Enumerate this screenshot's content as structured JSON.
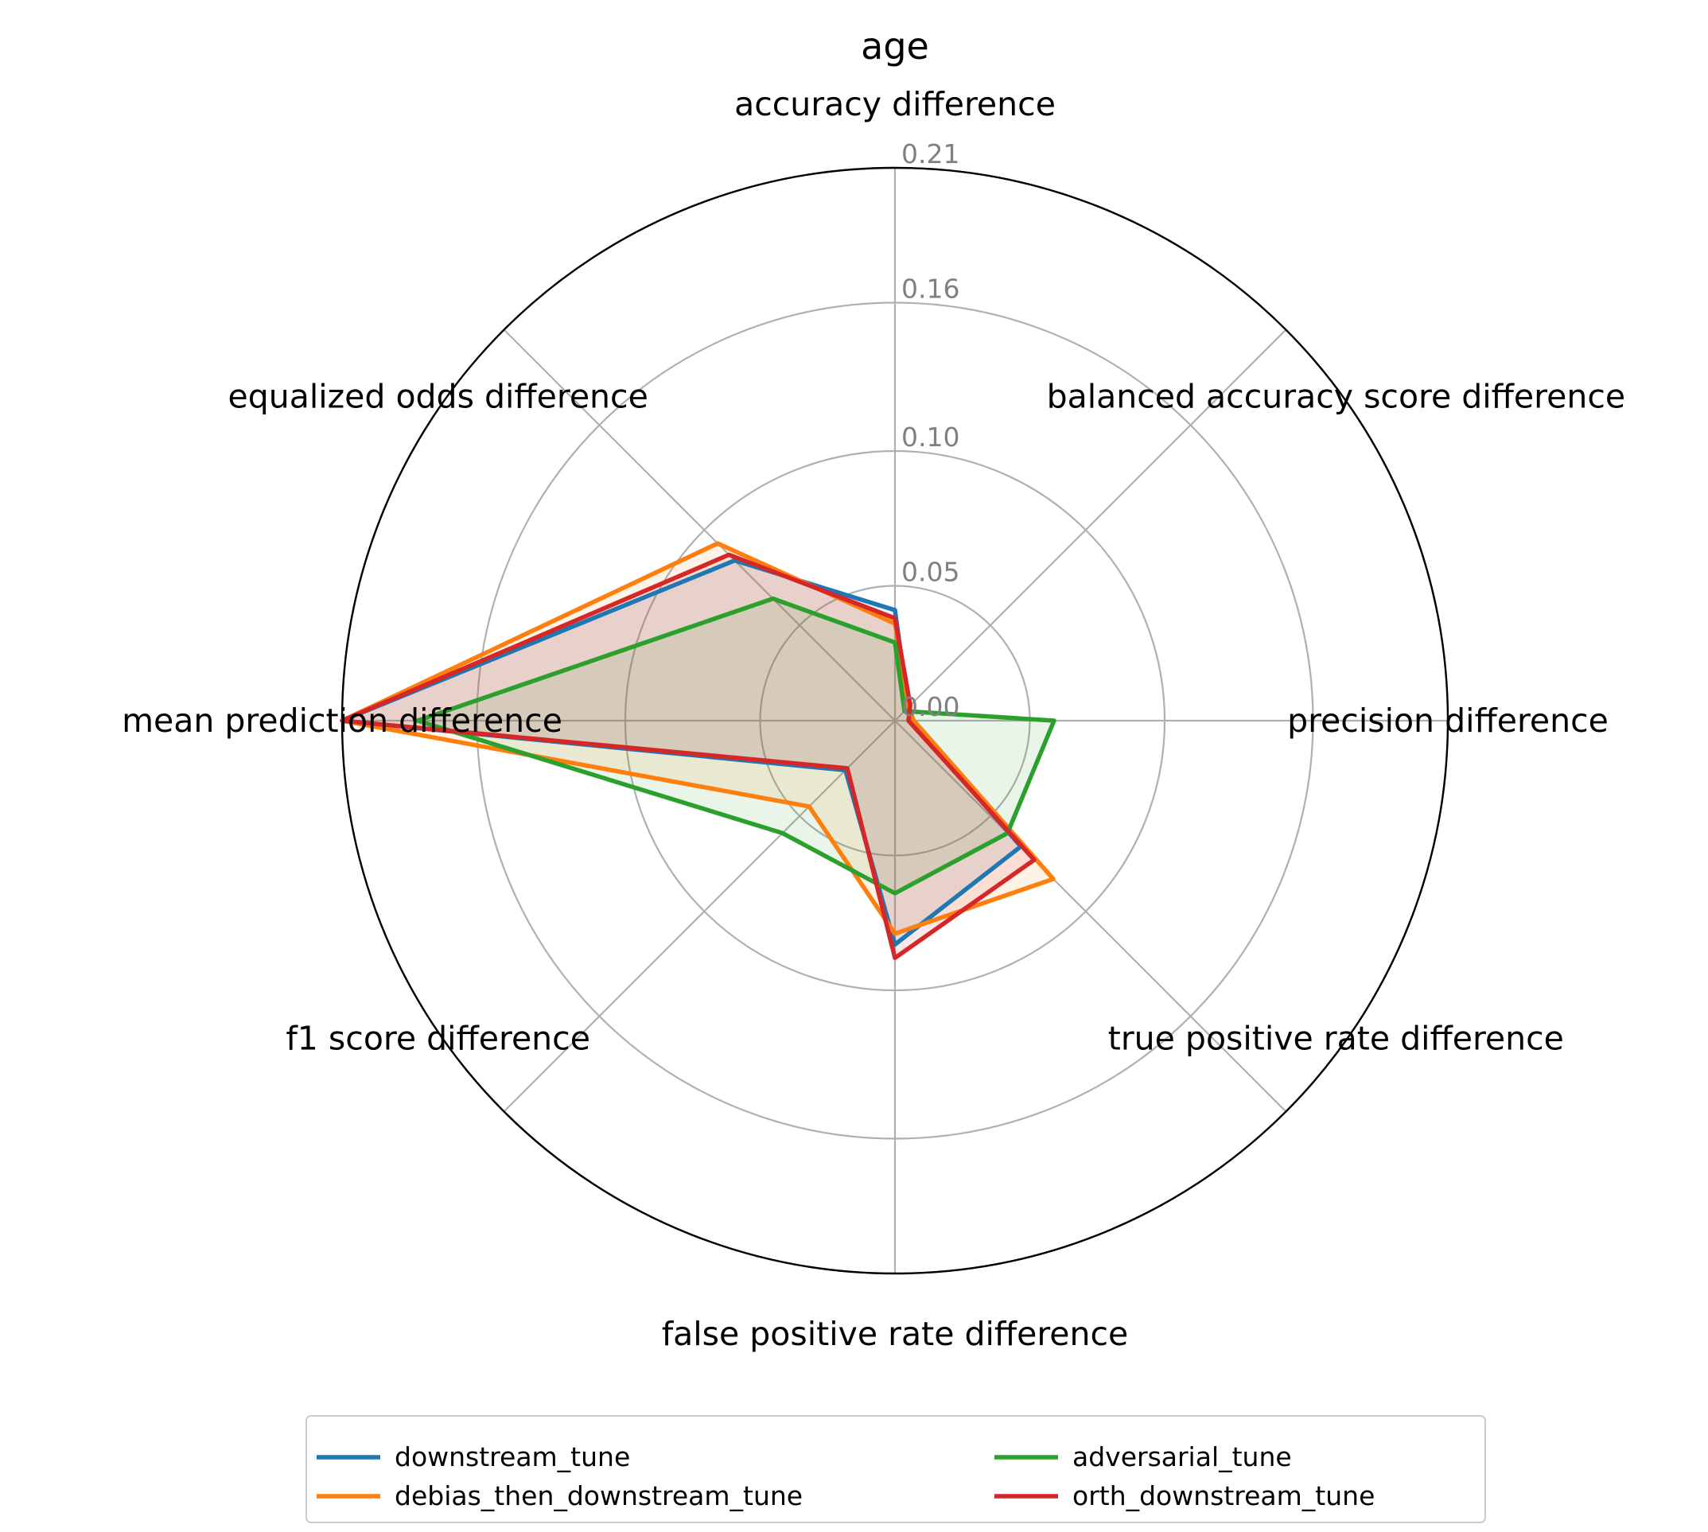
{
  "chart_data": {
    "type": "radar",
    "title": "age",
    "axes": [
      "accuracy difference",
      "balanced accuracy score difference",
      "precision difference",
      "true positive rate difference",
      "false positive rate difference",
      "f1 score difference",
      "mean prediction difference",
      "equalized odds difference"
    ],
    "r_ticks": [
      "0.00",
      "0.05",
      "0.10",
      "0.16",
      "0.21"
    ],
    "r_tick_values": [
      0.0,
      0.05,
      0.1,
      0.155,
      0.205
    ],
    "r_max": 0.205,
    "grid": true,
    "legend_position": "bottom-center",
    "series": [
      {
        "name": "downstream_tune",
        "color": "#1f77b4",
        "values": [
          0.041,
          0.007,
          0.006,
          0.066,
          0.083,
          0.026,
          0.205,
          0.084
        ]
      },
      {
        "name": "debias_then_downstream_tune",
        "color": "#ff7f0e",
        "values": [
          0.036,
          0.007,
          0.007,
          0.083,
          0.079,
          0.045,
          0.205,
          0.093
        ]
      },
      {
        "name": "adversarial_tune",
        "color": "#2ca02c",
        "values": [
          0.029,
          0.005,
          0.059,
          0.059,
          0.064,
          0.059,
          0.177,
          0.064
        ]
      },
      {
        "name": "orth_downstream_tune",
        "color": "#d62728",
        "values": [
          0.038,
          0.008,
          0.005,
          0.073,
          0.088,
          0.025,
          0.205,
          0.087
        ]
      }
    ]
  }
}
